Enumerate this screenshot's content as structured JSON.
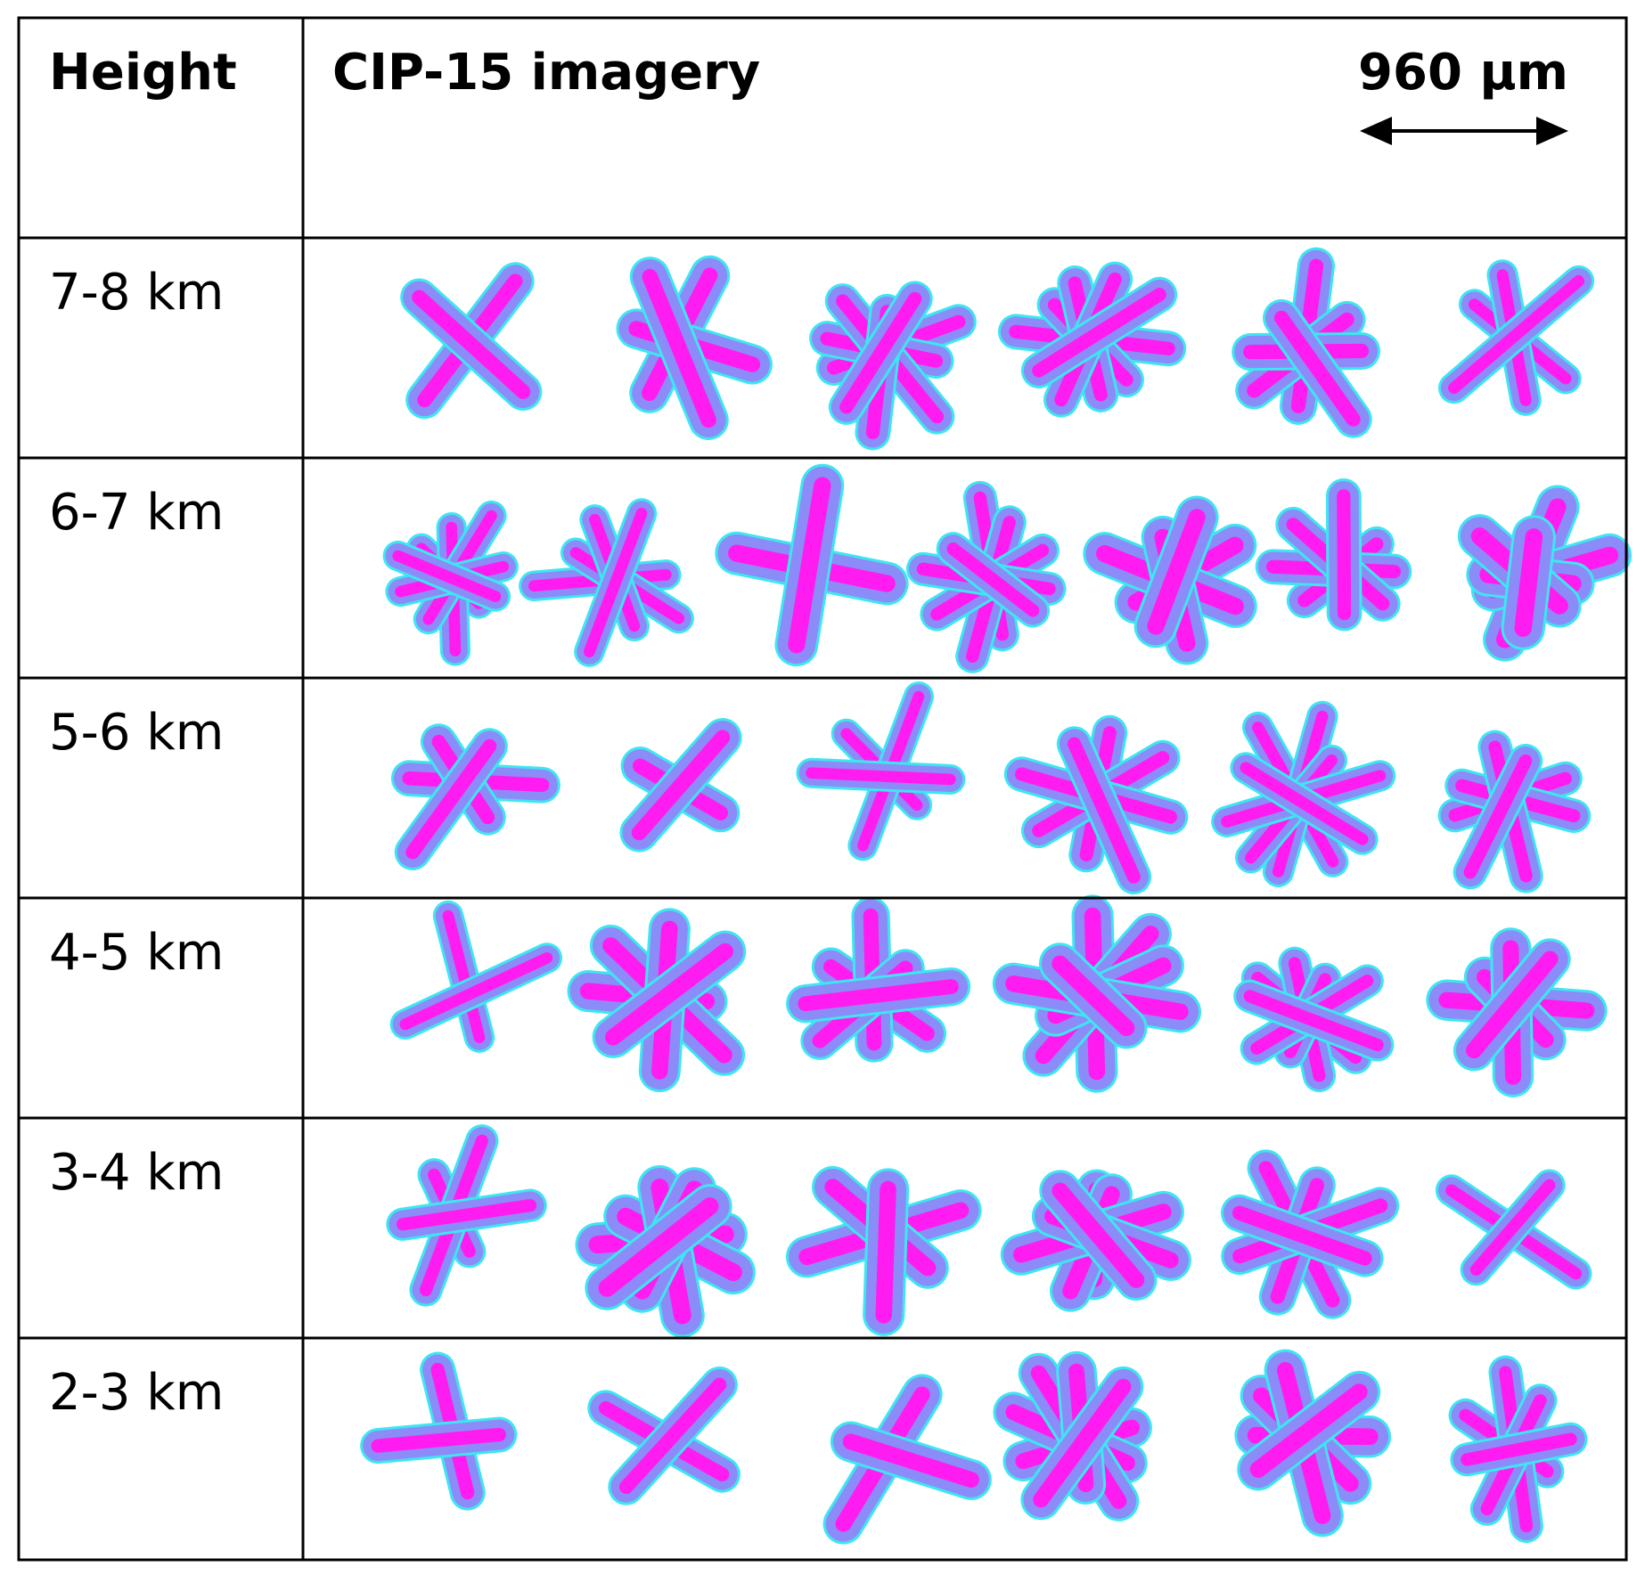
{
  "header": {
    "height": "Height",
    "imagery": "CIP-15 imagery",
    "scale": "960 μm"
  },
  "rows": [
    {
      "label": "7-8 km"
    },
    {
      "label": "6-7 km"
    },
    {
      "label": "5-6 km"
    },
    {
      "label": "4-5 km"
    },
    {
      "label": "3-4 km"
    },
    {
      "label": "2-3 km"
    }
  ]
}
